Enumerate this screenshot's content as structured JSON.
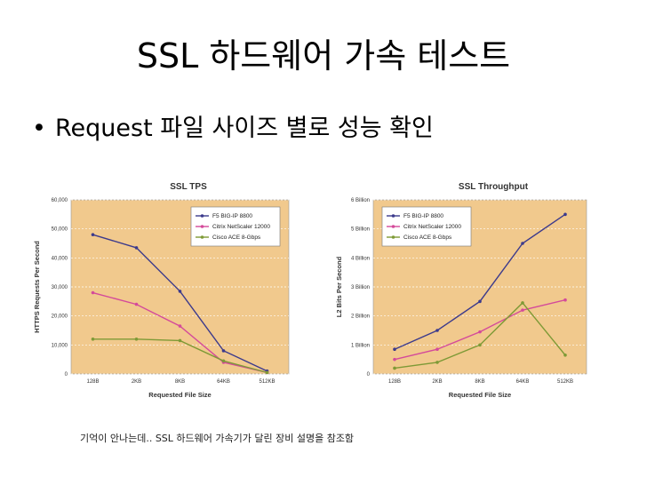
{
  "slide": {
    "title": "SSL 하드웨어 가속 테스트",
    "bullet": "Request 파일 사이즈 별로 성능 확인",
    "footnote": "기억이 안나는데.. SSL 하드웨어 가속기가 달린 장비 설명을 참조함"
  },
  "colors": {
    "plot_bg": "#f1c98d",
    "f5": "#3c3a8c",
    "citrix": "#d44a9a",
    "cisco": "#7e9a36"
  },
  "chart_data": [
    {
      "type": "line",
      "title": "SSL TPS",
      "xlabel": "Requested File Size",
      "ylabel": "HTTPS Requests Per Second",
      "categories": [
        "128B",
        "2KB",
        "8KB",
        "64KB",
        "512KB"
      ],
      "ylim": [
        0,
        60000
      ],
      "yticks": [
        0,
        10000,
        20000,
        30000,
        40000,
        50000,
        60000
      ],
      "ytick_labels": [
        "0",
        "10,000",
        "20,000",
        "30,000",
        "40,000",
        "50,000",
        "60,000"
      ],
      "grid": true,
      "legend": "top-right",
      "series": [
        {
          "name": "F5 BIG-IP 8800",
          "color": "#3c3a8c",
          "values": [
            48000,
            43500,
            28500,
            8000,
            1000
          ]
        },
        {
          "name": "Citrix NetScaler 12000",
          "color": "#d44a9a",
          "values": [
            28000,
            24000,
            16500,
            4000,
            500
          ]
        },
        {
          "name": "Cisco ACE 8-Gbps",
          "color": "#7e9a36",
          "values": [
            12000,
            12000,
            11500,
            4500,
            500
          ]
        }
      ]
    },
    {
      "type": "line",
      "title": "SSL Throughput",
      "xlabel": "Requested File Size",
      "ylabel": "L2 Bits Per Second",
      "categories": [
        "128B",
        "2KB",
        "8KB",
        "64KB",
        "512KB"
      ],
      "ylim": [
        0,
        6
      ],
      "yticks": [
        0,
        1,
        2,
        3,
        4,
        5,
        6
      ],
      "ytick_labels": [
        "0",
        "1 Billion",
        "2 Billion",
        "3 Billion",
        "4 Billion",
        "5 Billion",
        "6 Billion"
      ],
      "grid": true,
      "legend": "top-left",
      "series": [
        {
          "name": "F5 BIG-IP 8800",
          "color": "#3c3a8c",
          "values": [
            0.85,
            1.5,
            2.5,
            4.5,
            5.5
          ]
        },
        {
          "name": "Citrix NetScaler 12000",
          "color": "#d44a9a",
          "values": [
            0.5,
            0.85,
            1.45,
            2.2,
            2.55
          ]
        },
        {
          "name": "Cisco ACE 8-Gbps",
          "color": "#7e9a36",
          "values": [
            0.2,
            0.4,
            1.0,
            2.45,
            0.65
          ]
        }
      ]
    }
  ]
}
